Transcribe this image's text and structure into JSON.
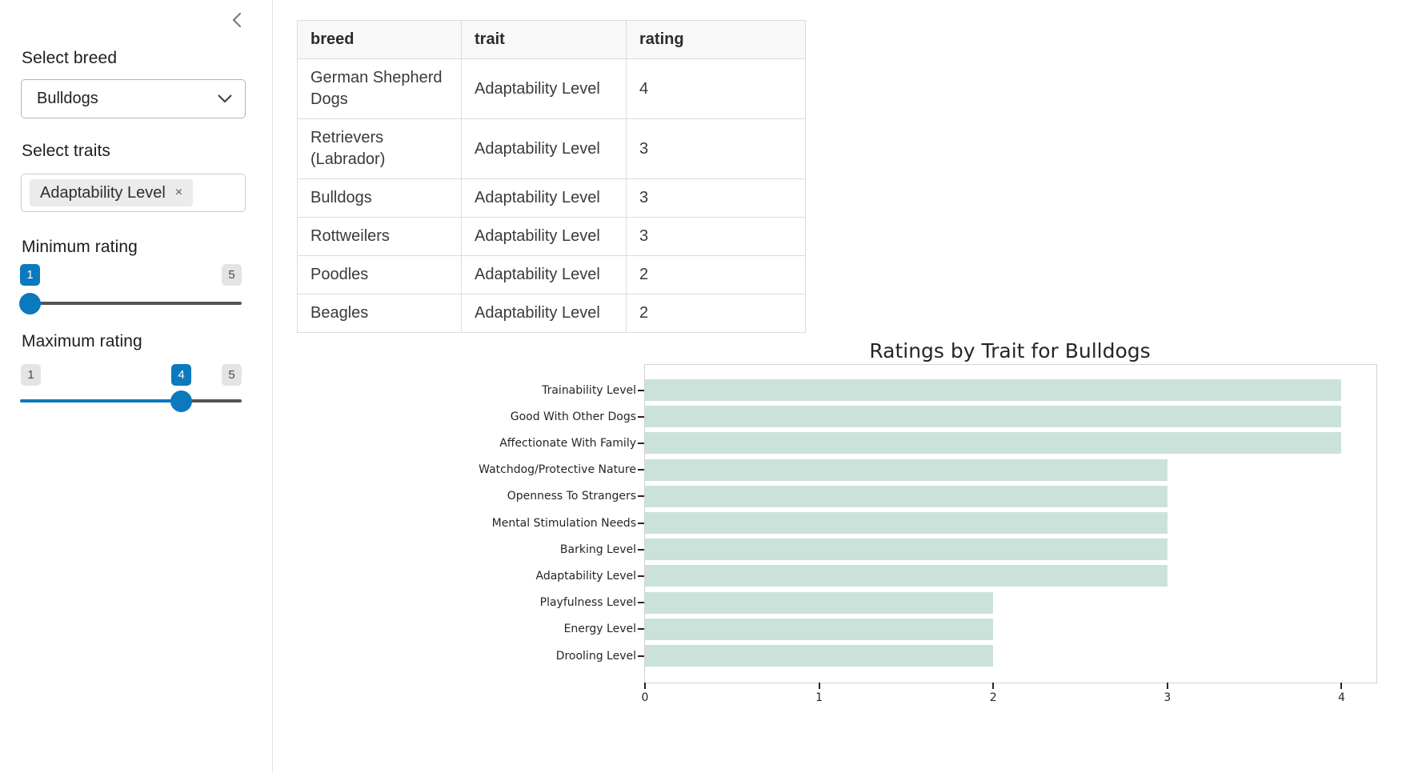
{
  "colors": {
    "accent_blue": "#0b79bd",
    "bar_fill": "#cbe2da",
    "track_gray": "#545454",
    "badge_gray_bg": "#e4e4e4",
    "table_header_bg": "#f8f8f8"
  },
  "icons": {
    "collapse": "chevron-left-icon",
    "select_caret": "chevron-down-icon",
    "trait_remove": "×"
  },
  "sidebar": {
    "breed_label": "Select breed",
    "breed_value": "Bulldogs",
    "traits_label": "Select traits",
    "traits_selected": [
      "Adaptability Level"
    ],
    "trait_tag_text": "Adaptability Level",
    "trait_remove_icon": "×",
    "min_rating": {
      "label": "Minimum rating",
      "value": "1",
      "min": "1",
      "max": "5"
    },
    "max_rating": {
      "label": "Maximum rating",
      "value": "4",
      "min": "1",
      "max": "5"
    }
  },
  "table": {
    "columns": [
      "breed",
      "trait",
      "rating"
    ],
    "rows": [
      {
        "breed": "German Shepherd Dogs",
        "trait": "Adaptability Level",
        "rating": "4"
      },
      {
        "breed": "Retrievers (Labrador)",
        "trait": "Adaptability Level",
        "rating": "3"
      },
      {
        "breed": "Bulldogs",
        "trait": "Adaptability Level",
        "rating": "3"
      },
      {
        "breed": "Rottweilers",
        "trait": "Adaptability Level",
        "rating": "3"
      },
      {
        "breed": "Poodles",
        "trait": "Adaptability Level",
        "rating": "2"
      },
      {
        "breed": "Beagles",
        "trait": "Adaptability Level",
        "rating": "2"
      }
    ]
  },
  "chart_data": {
    "type": "bar",
    "orientation": "horizontal",
    "title": "Ratings by Trait for Bulldogs",
    "categories": [
      "Trainability Level",
      "Good With Other Dogs",
      "Affectionate With Family",
      "Watchdog/Protective Nature",
      "Openness To Strangers",
      "Mental Stimulation Needs",
      "Barking Level",
      "Adaptability Level",
      "Playfulness Level",
      "Energy Level",
      "Drooling Level"
    ],
    "values": [
      4,
      4,
      4,
      3,
      3,
      3,
      3,
      3,
      2,
      2,
      2
    ],
    "xlabel": "",
    "ylabel": "",
    "xlim": [
      0,
      4.2
    ],
    "xticks": [
      0,
      1,
      2,
      3,
      4
    ],
    "grid": false,
    "legend": "none",
    "bar_color": "#cbe2da"
  }
}
